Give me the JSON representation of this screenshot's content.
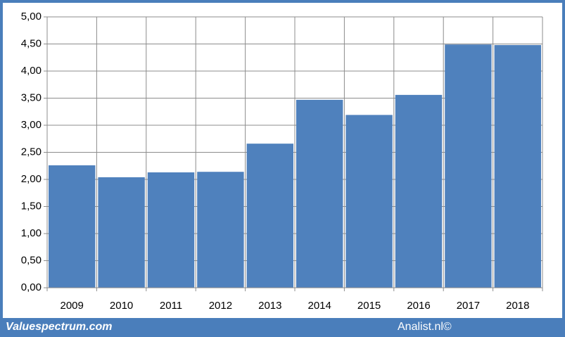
{
  "chart_data": {
    "type": "bar",
    "categories": [
      "2009",
      "2010",
      "2011",
      "2012",
      "2013",
      "2014",
      "2015",
      "2016",
      "2017",
      "2018"
    ],
    "values": [
      2.26,
      2.04,
      2.13,
      2.14,
      2.66,
      3.47,
      3.19,
      3.56,
      4.49,
      4.48
    ],
    "color": "#4f81bd",
    "ylim": [
      0,
      5
    ],
    "yticks": [
      {
        "value": 0,
        "label": "0,00"
      },
      {
        "value": 0.5,
        "label": "0,50"
      },
      {
        "value": 1,
        "label": "1,00"
      },
      {
        "value": 1.5,
        "label": "1,50"
      },
      {
        "value": 2,
        "label": "2,00"
      },
      {
        "value": 2.5,
        "label": "2,50"
      },
      {
        "value": 3,
        "label": "3,00"
      },
      {
        "value": 3.5,
        "label": "3,50"
      },
      {
        "value": 4,
        "label": "4,00"
      },
      {
        "value": 4.5,
        "label": "4,50"
      },
      {
        "value": 5,
        "label": "5,00"
      }
    ],
    "grid": true,
    "footer_left": "Valuespectrum.com",
    "footer_right": "Analist.nl©"
  }
}
